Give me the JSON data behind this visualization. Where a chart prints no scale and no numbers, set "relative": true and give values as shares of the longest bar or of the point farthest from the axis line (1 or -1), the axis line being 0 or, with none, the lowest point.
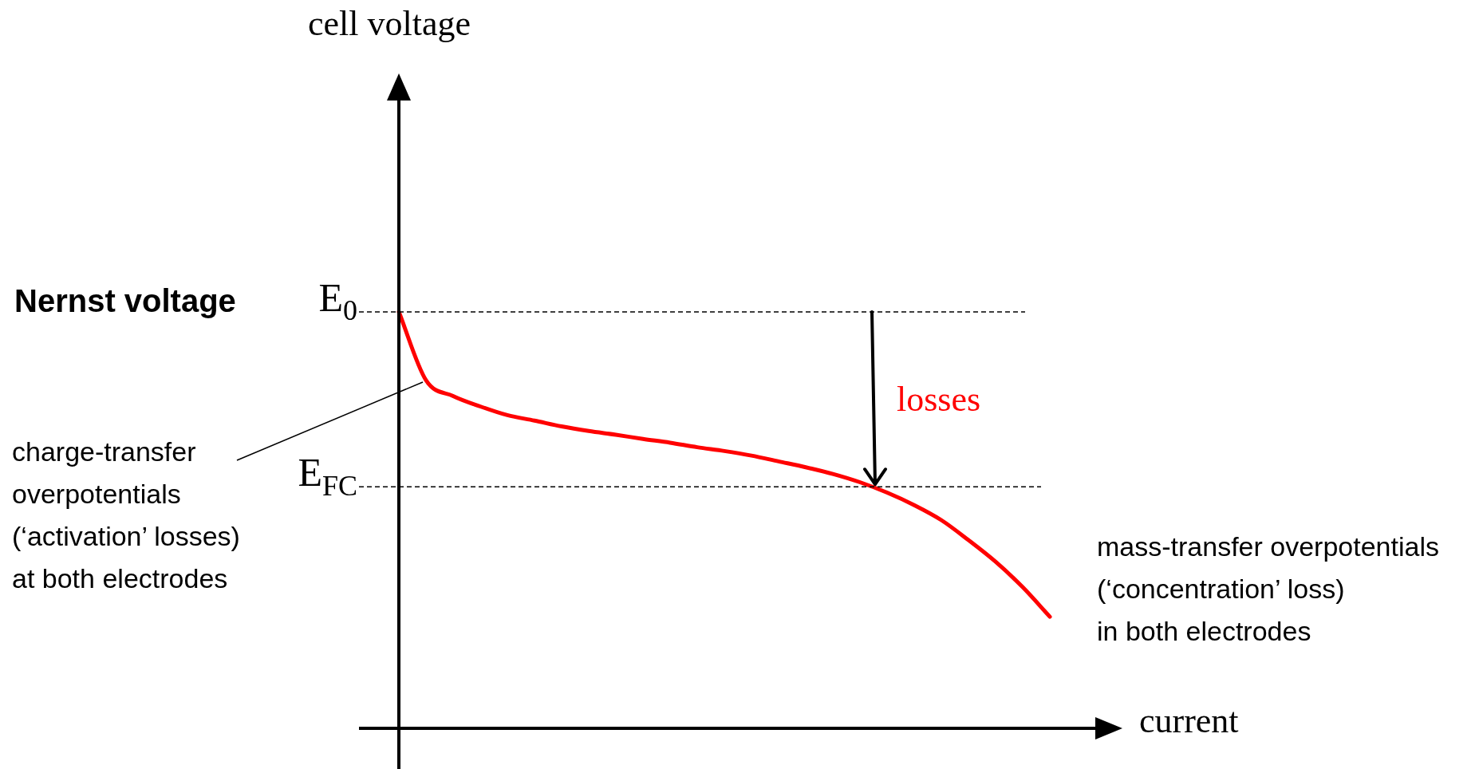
{
  "chart_data": {
    "type": "line",
    "relative": true,
    "xlabel": "current",
    "categories": [
      null,
      null,
      null,
      null,
      null,
      null,
      null,
      null,
      null,
      null,
      null,
      null,
      null,
      null,
      null,
      null,
      null,
      null,
      null,
      null,
      null,
      null,
      null,
      null,
      null
    ],
    "series": [
      {
        "color": "#ff0000",
        "values": [
          1.0,
          0.836,
          0.798,
          0.773,
          0.752,
          0.739,
          0.725,
          0.714,
          0.705,
          0.695,
          0.686,
          0.675,
          0.666,
          0.655,
          0.641,
          0.627,
          0.611,
          0.591,
          0.566,
          0.536,
          0.5,
          0.452,
          0.4,
          0.339,
          0.268
        ]
      }
    ],
    "ref_lines": [
      {
        "axis": "y",
        "value": 1.0,
        "label": "E$_{0}$",
        "color": "#000000",
        "line_style": "dashed"
      },
      {
        "axis": "y",
        "value": 0.58,
        "label": "E$_{FC}$",
        "color": "#000000",
        "line_style": "dashed"
      }
    ],
    "annotations": [
      "Nernst voltage",
      "losses",
      "charge-transfer\noverpotentials\n(‘activation’ losses)\nat both electrodes",
      "mass-transfer overpotentials\n(‘concentration’ loss)\nin both electrodes",
      "cell voltage"
    ],
    "legend": false,
    "tick_labels": false,
    "marker": "none",
    "line_style": "solid"
  }
}
